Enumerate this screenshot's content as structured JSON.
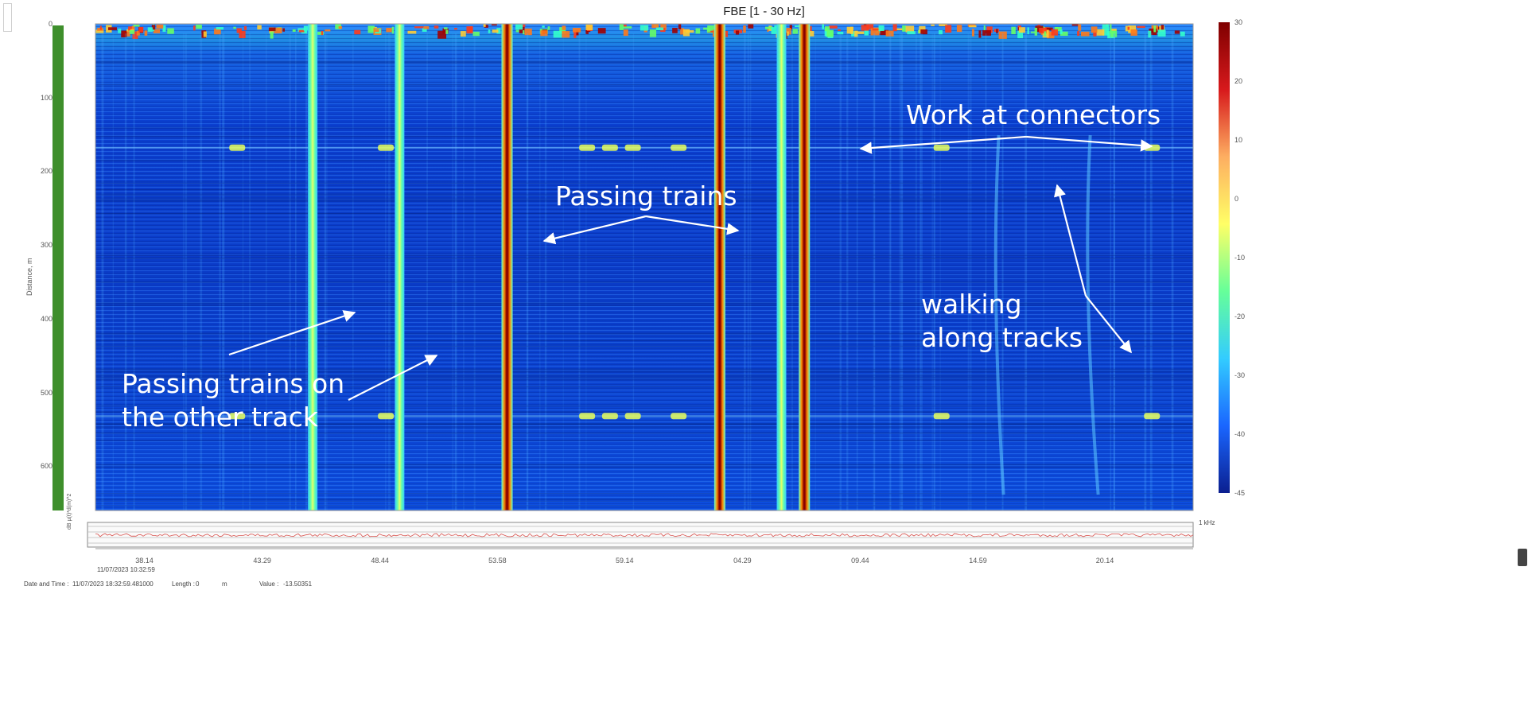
{
  "chart_data": {
    "type": "heatmap",
    "title": "FBE [1 - 30 Hz]",
    "ylabel": "Distance, m",
    "yticks": [
      "0",
      "100",
      "200",
      "300",
      "400",
      "500",
      "600"
    ],
    "ylim": [
      0,
      660
    ],
    "xticks": [
      "38.14",
      "43.29",
      "48.44",
      "53.58",
      "59.14",
      "04.29",
      "09.44",
      "14.59",
      "20.14"
    ],
    "colorbar": {
      "ticks": [
        "30",
        "20",
        "10",
        "0",
        "-10",
        "-20",
        "-30",
        "-40",
        "-45"
      ],
      "colors": [
        "#7f0000",
        "#d7191c",
        "#fdae61",
        "#ffff66",
        "#66ff99",
        "#33ccff",
        "#1a66ff",
        "#0b1f8f"
      ]
    },
    "events": {
      "strong_trains_x": [
        54.0,
        63.3,
        67.0
      ],
      "other_track_trains_x": [
        45.5,
        49.3
      ],
      "bright_trains_x": [
        66.0
      ],
      "walking_x": [
        75.5,
        79.5
      ],
      "connector_rows_m": [
        168,
        532
      ]
    },
    "annotations": [
      {
        "id": "work-at-connectors",
        "text": "Work at connectors"
      },
      {
        "id": "passing-trains",
        "text": "Passing trains"
      },
      {
        "id": "walking-along-tracks",
        "lines": [
          "walking",
          "along tracks"
        ]
      },
      {
        "id": "passing-trains-other-track",
        "lines": [
          "Passing trains on",
          "the other track"
        ]
      }
    ]
  },
  "subplot": {
    "ylabel": "dB µ(t)*d(m)^2",
    "start_time": "11/07/2023 10:32:59"
  },
  "statusbar": {
    "datetime_label": "Date and Time :",
    "datetime_value": "11/07/2023 18:32:59.481000",
    "length_label": "Length :",
    "length_value": "0",
    "length_unit": "m",
    "value_label": "Value :",
    "value_value": "-13.50351"
  },
  "right_labels": {
    "khz": "1 kHz"
  }
}
